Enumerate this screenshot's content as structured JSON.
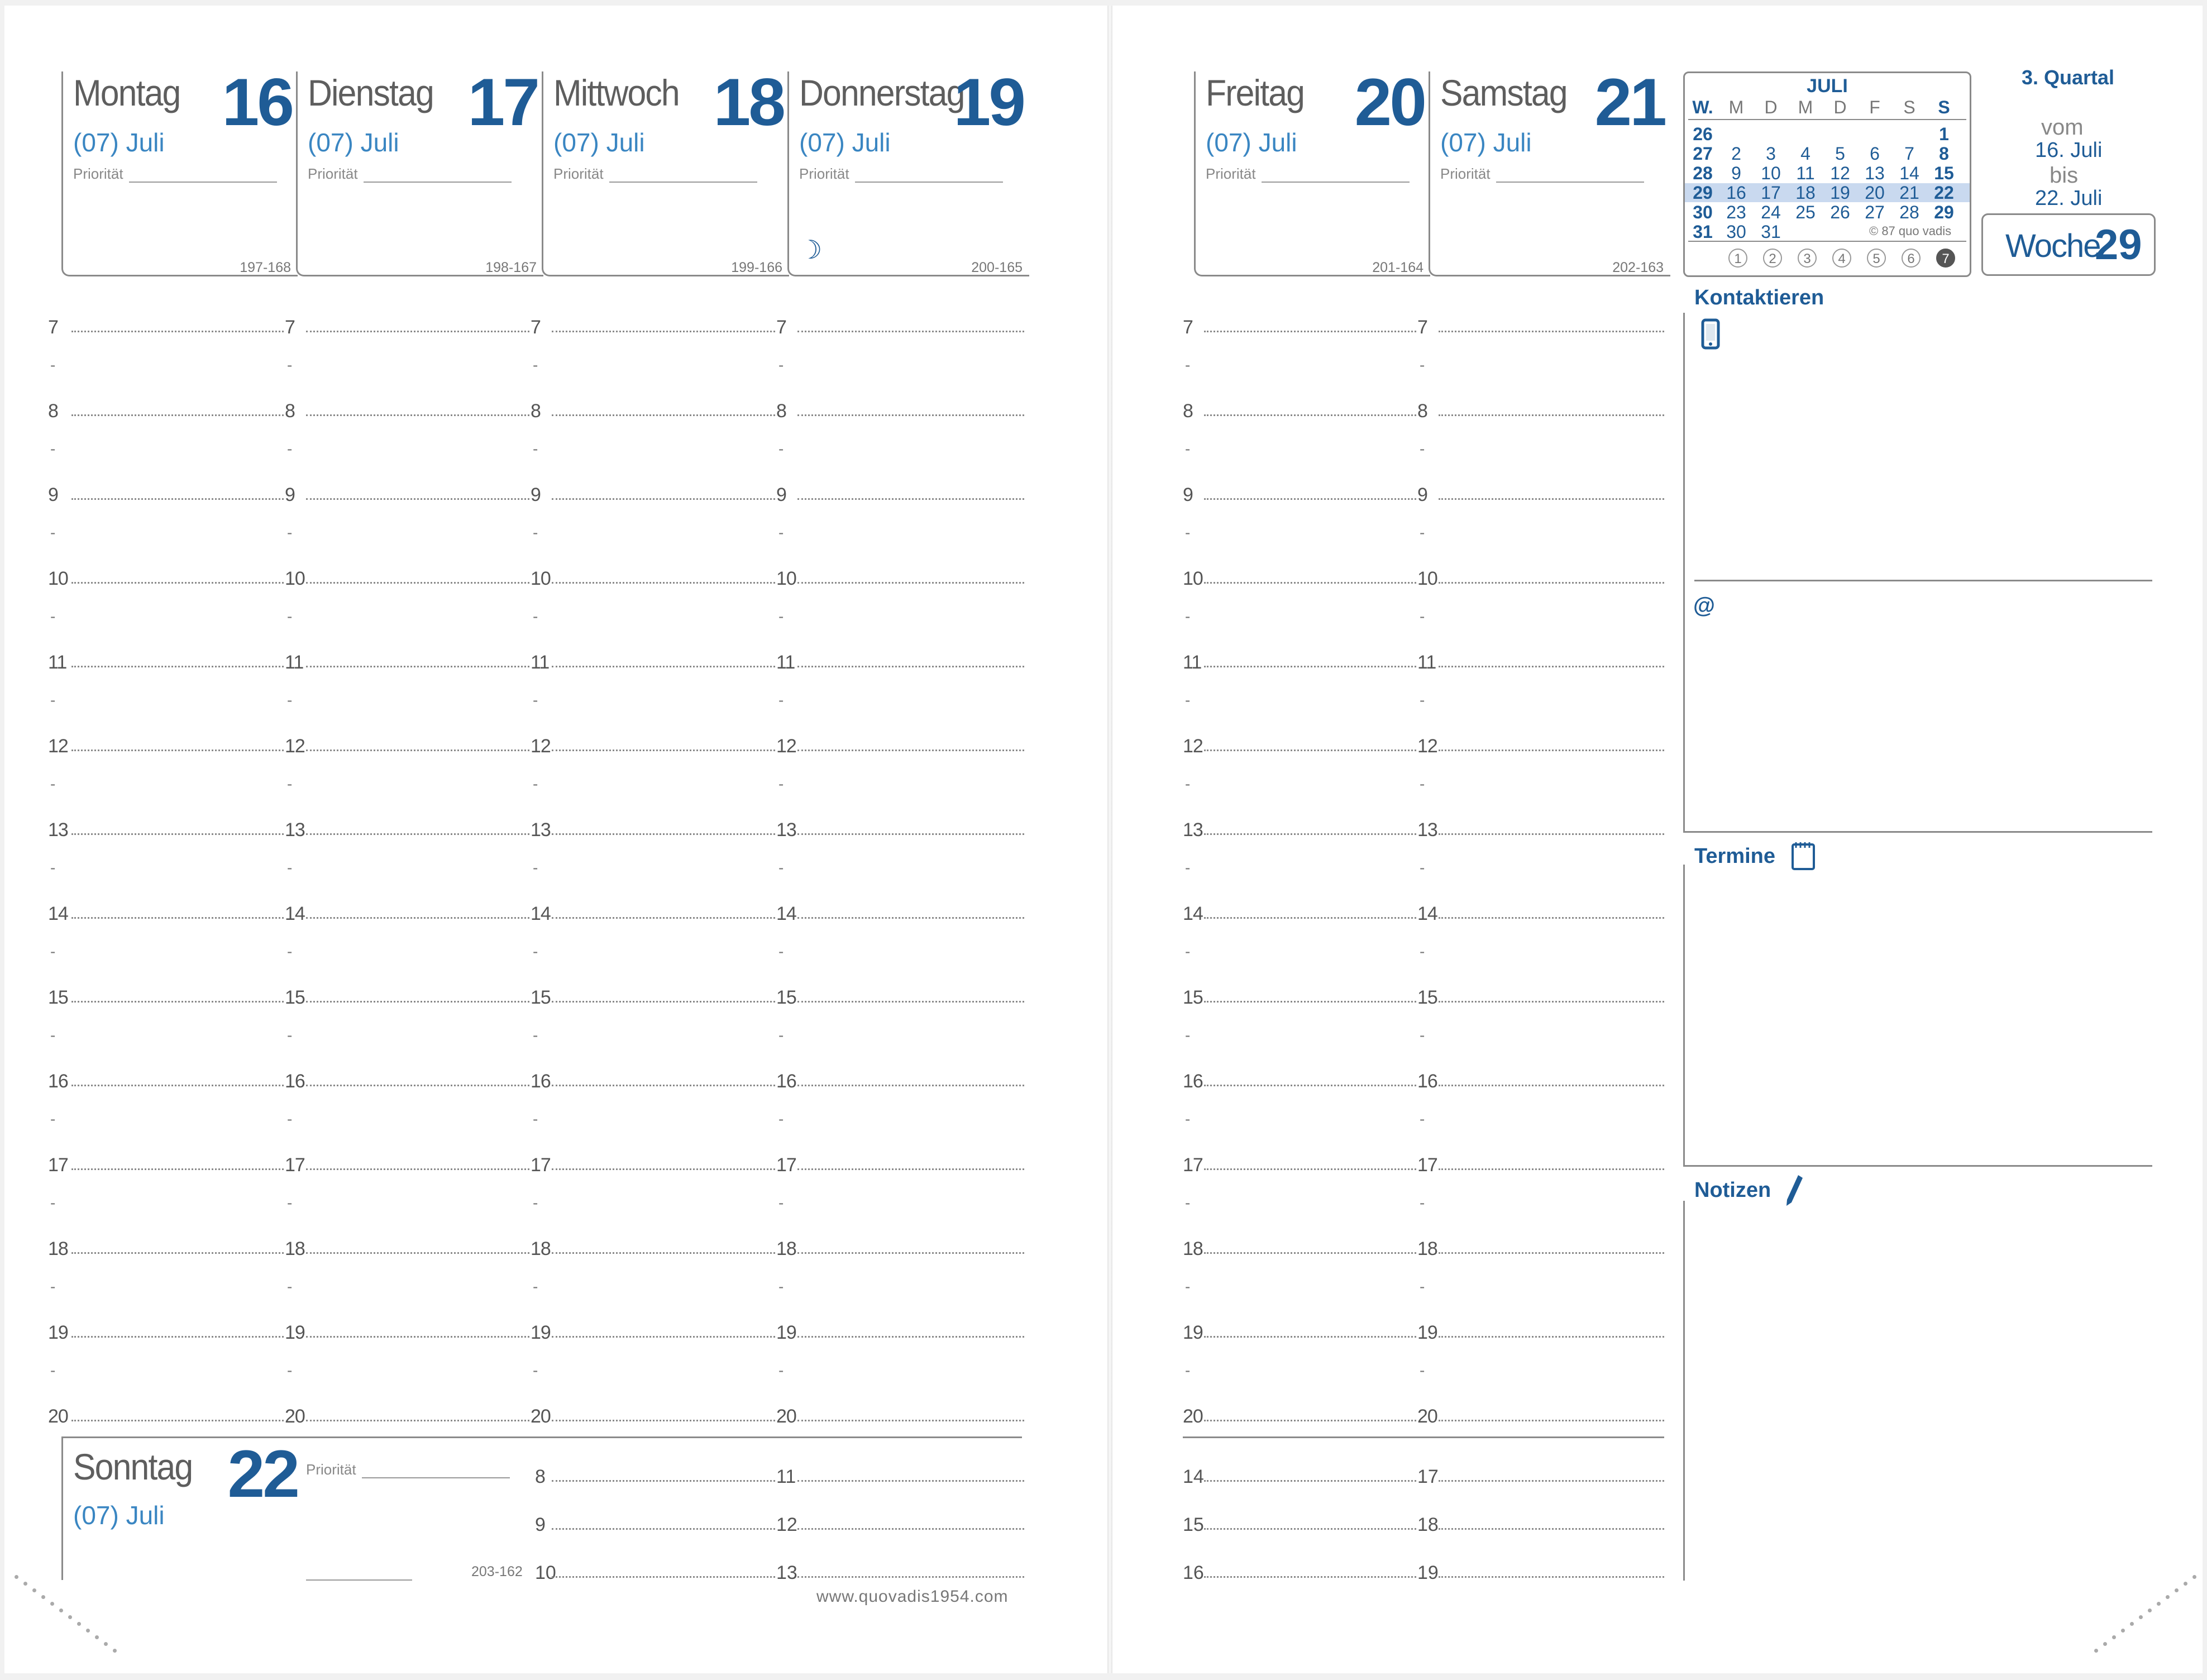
{
  "days": [
    {
      "name": "Montag",
      "num": "16",
      "month": "(07) Juli",
      "priority": "Priorität",
      "code": "197-168"
    },
    {
      "name": "Dienstag",
      "num": "17",
      "month": "(07) Juli",
      "priority": "Priorität",
      "code": "198-167"
    },
    {
      "name": "Mittwoch",
      "num": "18",
      "month": "(07) Juli",
      "priority": "Priorität",
      "code": "199-166"
    },
    {
      "name": "Donnerstag",
      "num": "19",
      "month": "(07) Juli",
      "priority": "Priorität",
      "code": "200-165",
      "moon": "☽"
    },
    {
      "name": "Freitag",
      "num": "20",
      "month": "(07) Juli",
      "priority": "Priorität",
      "code": "201-164"
    },
    {
      "name": "Samstag",
      "num": "21",
      "month": "(07) Juli",
      "priority": "Priorität",
      "code": "202-163"
    }
  ],
  "hours": [
    "7",
    "8",
    "9",
    "10",
    "11",
    "12",
    "13",
    "14",
    "15",
    "16",
    "17",
    "18",
    "19",
    "20"
  ],
  "half_marker": "-",
  "sunday": {
    "name": "Sonntag",
    "num": "22",
    "month": "(07) Juli",
    "priority": "Priorität",
    "code": "203-162",
    "hours_a": [
      "8",
      "9",
      "10"
    ],
    "hours_b": [
      "11",
      "12",
      "13"
    ]
  },
  "weekend_extra_hours": {
    "sat_col": [
      "14",
      "15",
      "16"
    ],
    "sun_col": [
      "17",
      "18",
      "19"
    ]
  },
  "footer_url": "www.quovadis1954.com",
  "quarter": "3. Quartal",
  "range": {
    "vom": "vom",
    "from": "16. Juli",
    "bis": "bis",
    "to": "22. Juli"
  },
  "week": {
    "label": "Woche",
    "num": "29"
  },
  "mini_calendar": {
    "month": "JULI",
    "headers": [
      "W.",
      "M",
      "D",
      "M",
      "D",
      "F",
      "S",
      "S"
    ],
    "rows": [
      [
        "26",
        "",
        "",
        "",
        "",
        "",
        "",
        "1"
      ],
      [
        "27",
        "2",
        "3",
        "4",
        "5",
        "6",
        "7",
        "8"
      ],
      [
        "28",
        "9",
        "10",
        "11",
        "12",
        "13",
        "14",
        "15"
      ],
      [
        "29",
        "16",
        "17",
        "18",
        "19",
        "20",
        "21",
        "22"
      ],
      [
        "30",
        "23",
        "24",
        "25",
        "26",
        "27",
        "28",
        "29"
      ],
      [
        "31",
        "30",
        "31",
        "",
        "",
        "",
        "",
        ""
      ]
    ],
    "highlight_row": 3,
    "copyright": "© 87 quo vadis",
    "weekday_circles": [
      "1",
      "2",
      "3",
      "4",
      "5",
      "6",
      "7"
    ],
    "highlight_circle": "7",
    "highlight_color": "#c9d9ef"
  },
  "sections": {
    "contact": "Kontaktieren",
    "at": "@",
    "appointments": "Termine",
    "notes": "Notizen"
  },
  "colors": {
    "blue": "#1f5c96",
    "light_blue": "#3a86c2",
    "gray_line": "#8a8a8a"
  }
}
